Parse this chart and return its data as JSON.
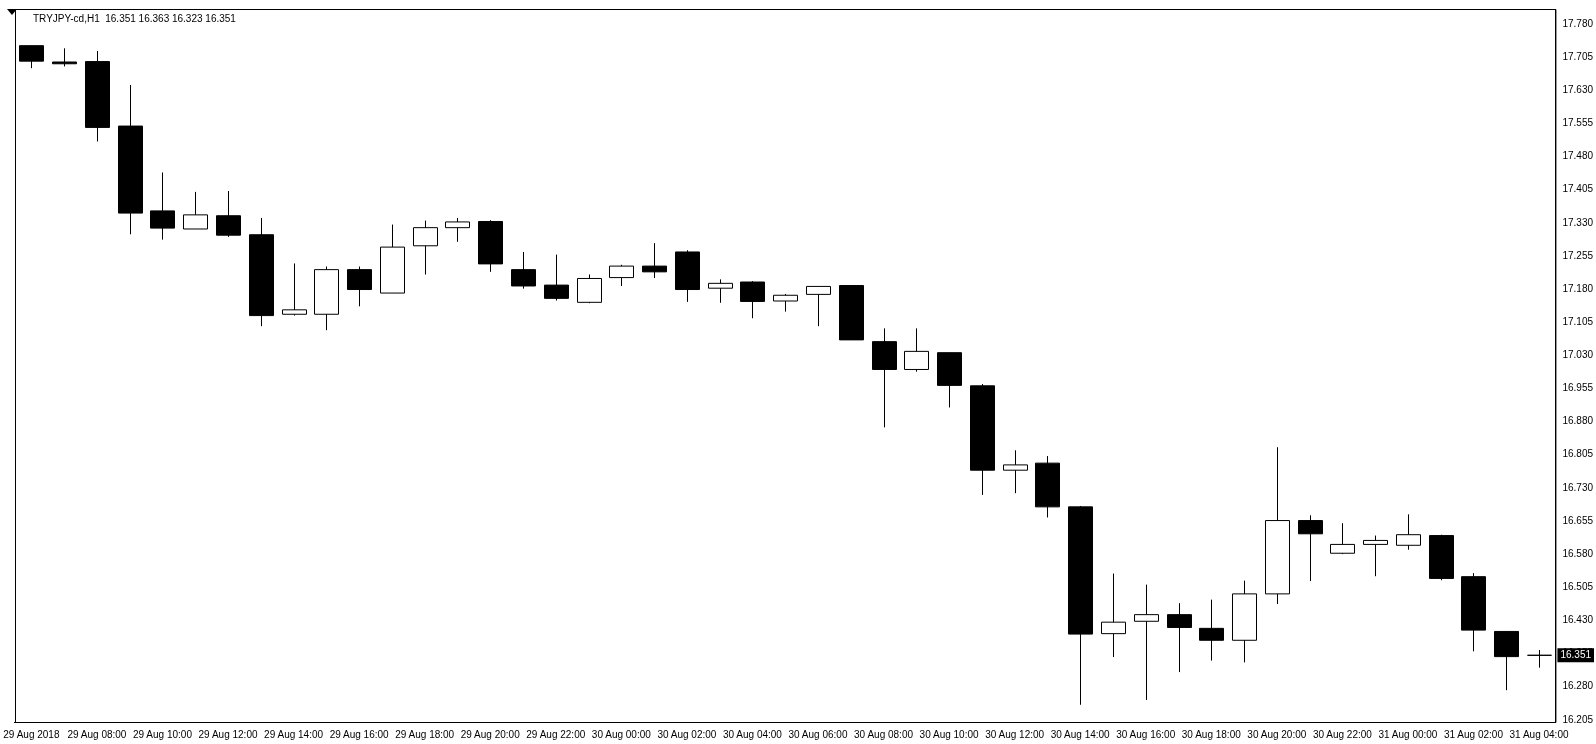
{
  "chart_data": {
    "type": "candlestick",
    "title": "TRYJPY-cd,H1  16.351 16.363 16.323 16.351",
    "categories": [
      "29 Aug 2018",
      null,
      "29 Aug 08:00",
      null,
      "29 Aug 10:00",
      null,
      "29 Aug 12:00",
      null,
      "29 Aug 14:00",
      null,
      "29 Aug 16:00",
      null,
      "29 Aug 18:00",
      null,
      "29 Aug 20:00",
      null,
      "29 Aug 22:00",
      null,
      "30 Aug 00:00",
      null,
      "30 Aug 02:00",
      null,
      "30 Aug 04:00",
      null,
      "30 Aug 06:00",
      null,
      "30 Aug 08:00",
      null,
      "30 Aug 10:00",
      null,
      "30 Aug 12:00",
      null,
      "30 Aug 14:00",
      null,
      "30 Aug 16:00",
      null,
      "30 Aug 18:00",
      null,
      "30 Aug 20:00",
      null,
      "30 Aug 22:00",
      null,
      "31 Aug 00:00",
      null,
      "31 Aug 02:00",
      null,
      "31 Aug 04:00"
    ],
    "ohlc": [
      [
        17.731,
        17.731,
        17.68,
        17.696
      ],
      [
        17.694,
        17.725,
        17.684,
        17.69
      ],
      [
        17.695,
        17.719,
        17.514,
        17.546
      ],
      [
        17.549,
        17.642,
        17.304,
        17.352
      ],
      [
        17.357,
        17.444,
        17.292,
        17.318
      ],
      [
        17.316,
        17.4,
        17.316,
        17.348
      ],
      [
        17.346,
        17.402,
        17.298,
        17.302
      ],
      [
        17.303,
        17.341,
        17.096,
        17.12
      ],
      [
        17.123,
        17.238,
        17.12,
        17.133
      ],
      [
        17.123,
        17.231,
        17.087,
        17.224
      ],
      [
        17.224,
        17.231,
        17.141,
        17.179
      ],
      [
        17.171,
        17.326,
        17.171,
        17.275
      ],
      [
        17.278,
        17.335,
        17.213,
        17.319
      ],
      [
        17.319,
        17.341,
        17.287,
        17.332
      ],
      [
        17.333,
        17.336,
        17.219,
        17.237
      ],
      [
        17.224,
        17.264,
        17.181,
        17.187
      ],
      [
        17.189,
        17.258,
        17.154,
        17.159
      ],
      [
        17.15,
        17.213,
        17.148,
        17.204
      ],
      [
        17.206,
        17.235,
        17.187,
        17.232
      ],
      [
        17.232,
        17.284,
        17.205,
        17.219
      ],
      [
        17.264,
        17.268,
        17.151,
        17.179
      ],
      [
        17.182,
        17.202,
        17.149,
        17.193
      ],
      [
        17.196,
        17.198,
        17.114,
        17.152
      ],
      [
        17.153,
        17.169,
        17.129,
        17.166
      ],
      [
        17.168,
        17.186,
        17.096,
        17.186
      ],
      [
        17.188,
        17.188,
        17.065,
        17.065
      ],
      [
        17.061,
        17.091,
        16.867,
        16.998
      ],
      [
        16.998,
        17.091,
        16.993,
        17.039
      ],
      [
        17.036,
        17.036,
        16.912,
        16.962
      ],
      [
        16.961,
        16.965,
        16.714,
        16.77
      ],
      [
        16.77,
        16.815,
        16.718,
        16.782
      ],
      [
        16.786,
        16.802,
        16.663,
        16.687
      ],
      [
        16.687,
        16.689,
        16.239,
        16.399
      ],
      [
        16.4,
        16.536,
        16.347,
        16.426
      ],
      [
        16.428,
        16.511,
        16.25,
        16.443
      ],
      [
        16.443,
        16.469,
        16.313,
        16.414
      ],
      [
        16.412,
        16.477,
        16.339,
        16.385
      ],
      [
        16.385,
        16.52,
        16.335,
        16.49
      ],
      [
        16.49,
        16.822,
        16.467,
        16.656
      ],
      [
        16.656,
        16.668,
        16.519,
        16.626
      ],
      [
        16.582,
        16.65,
        16.58,
        16.602
      ],
      [
        16.602,
        16.622,
        16.53,
        16.611
      ],
      [
        16.6,
        16.67,
        16.59,
        16.624
      ],
      [
        16.622,
        16.624,
        16.521,
        16.525
      ],
      [
        16.529,
        16.537,
        16.36,
        16.408
      ],
      [
        16.405,
        16.405,
        16.272,
        16.348
      ],
      [
        16.351,
        16.363,
        16.323,
        16.351
      ]
    ],
    "colors": [
      "#000000",
      "#000000",
      "#000000",
      "#000000",
      "#000000",
      "#ffffff",
      "#000000",
      "#000000",
      "#ffffff",
      "#ffffff",
      "#000000",
      "#ffffff",
      "#ffffff",
      "#ffffff",
      "#000000",
      "#000000",
      "#000000",
      "#ffffff",
      "#ffffff",
      "#000000",
      "#000000",
      "#ffffff",
      "#000000",
      "#ffffff",
      "#ffffff",
      "#000000",
      "#000000",
      "#ffffff",
      "#000000",
      "#000000",
      "#ffffff",
      "#000000",
      "#000000",
      "#ffffff",
      "#ffffff",
      "#000000",
      "#000000",
      "#ffffff",
      "#ffffff",
      "#000000",
      "#ffffff",
      "#ffffff",
      "#ffffff",
      "#000000",
      "#000000",
      "#000000",
      "#000000"
    ],
    "ylim": [
      16.2,
      17.814
    ],
    "yticks": [
      {
        "value": 17.78,
        "label": "17.780"
      },
      17.705,
      {
        "value": 17.63,
        "label": "17.630"
      },
      17.555,
      {
        "value": 17.48,
        "label": "17.480"
      },
      17.405,
      {
        "value": 17.33,
        "label": "17.330"
      },
      17.255,
      {
        "value": 17.18,
        "label": "17.180"
      },
      17.105,
      {
        "value": 17.03,
        "label": "17.030"
      },
      16.955,
      {
        "value": 16.88,
        "label": "16.880"
      },
      16.805,
      {
        "value": 16.73,
        "label": "16.730"
      },
      16.655,
      {
        "value": 16.58,
        "label": "16.580"
      },
      16.505,
      {
        "value": 16.43,
        "label": "16.430"
      },
      16.355,
      {
        "value": 16.28,
        "label": "16.280"
      },
      16.205
    ],
    "annotations": [
      "16.351"
    ],
    "grid": false,
    "legend": false
  }
}
